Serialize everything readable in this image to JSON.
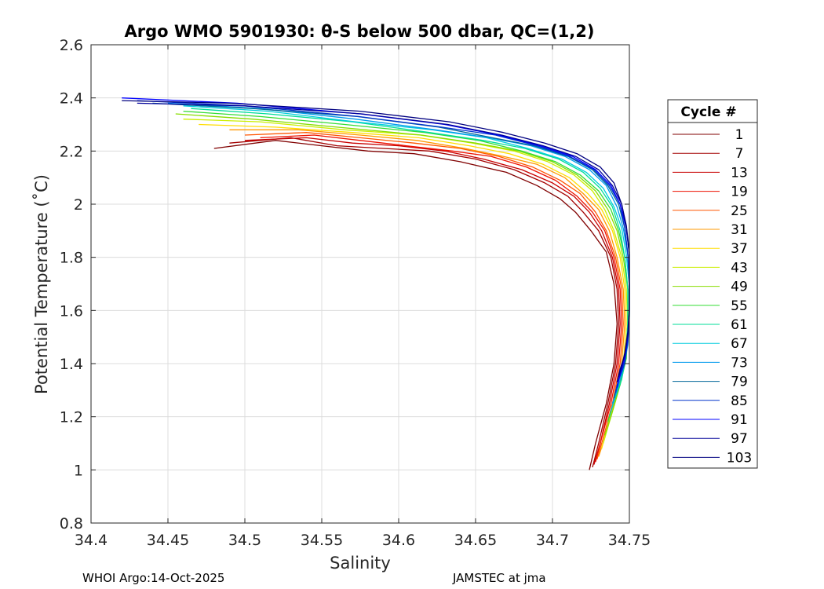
{
  "chart_data": {
    "type": "line",
    "title": "Argo WMO 5901930: θ-S below 500 dbar,  QC=(1,2)",
    "xlabel": "Salinity",
    "ylabel": "Potential Temperature (˚C)",
    "xlim": [
      34.4,
      34.75
    ],
    "ylim": [
      0.8,
      2.6
    ],
    "xticks": [
      34.4,
      34.45,
      34.5,
      34.55,
      34.6,
      34.65,
      34.7,
      34.75
    ],
    "yticks": [
      0.8,
      1,
      1.2,
      1.4,
      1.6,
      1.8,
      2,
      2.2,
      2.4,
      2.6
    ],
    "xtick_labels": [
      "34.4",
      "34.45",
      "34.5",
      "34.55",
      "34.6",
      "34.65",
      "34.7",
      "34.75"
    ],
    "ytick_labels": [
      "0.8",
      "1",
      "1.2",
      "1.4",
      "1.6",
      "1.8",
      "2",
      "2.2",
      "2.4",
      "2.6"
    ],
    "grid": true,
    "legend_title": "Cycle #",
    "legend_position": "right, outside plot",
    "series": [
      {
        "name": "1",
        "color": "#800000",
        "x": [
          34.48,
          34.52,
          34.55,
          34.58,
          34.61,
          34.64,
          34.67,
          34.69,
          34.705,
          34.715,
          34.725,
          34.735,
          34.74,
          34.742,
          34.74,
          34.735,
          34.728,
          34.724
        ],
        "y": [
          2.21,
          2.24,
          2.22,
          2.2,
          2.19,
          2.16,
          2.12,
          2.07,
          2.02,
          1.97,
          1.9,
          1.82,
          1.7,
          1.55,
          1.4,
          1.25,
          1.1,
          1.0
        ]
      },
      {
        "name": "7",
        "color": "#a30000",
        "x": [
          34.49,
          34.53,
          34.56,
          34.59,
          34.62,
          34.65,
          34.675,
          34.695,
          34.71,
          34.72,
          34.73,
          34.738,
          34.742,
          34.743,
          34.741,
          34.736,
          34.73,
          34.726
        ],
        "y": [
          2.23,
          2.25,
          2.22,
          2.21,
          2.2,
          2.17,
          2.13,
          2.08,
          2.03,
          1.97,
          1.9,
          1.8,
          1.68,
          1.55,
          1.4,
          1.25,
          1.1,
          1.01
        ]
      },
      {
        "name": "13",
        "color": "#c80000",
        "x": [
          34.5,
          34.54,
          34.57,
          34.6,
          34.63,
          34.655,
          34.68,
          34.7,
          34.714,
          34.724,
          34.732,
          34.739,
          34.743,
          34.744,
          34.742,
          34.737,
          34.731,
          34.727
        ],
        "y": [
          2.24,
          2.25,
          2.23,
          2.22,
          2.2,
          2.17,
          2.13,
          2.08,
          2.03,
          1.97,
          1.9,
          1.8,
          1.68,
          1.55,
          1.4,
          1.25,
          1.1,
          1.02
        ]
      },
      {
        "name": "19",
        "color": "#ee1100",
        "x": [
          34.51,
          34.545,
          34.575,
          34.605,
          34.635,
          34.66,
          34.683,
          34.702,
          34.716,
          34.726,
          34.734,
          34.74,
          34.744,
          34.745,
          34.743,
          34.738,
          34.732,
          34.728
        ],
        "y": [
          2.25,
          2.26,
          2.24,
          2.22,
          2.2,
          2.18,
          2.14,
          2.09,
          2.03,
          1.97,
          1.9,
          1.8,
          1.68,
          1.55,
          1.4,
          1.25,
          1.12,
          1.03
        ]
      },
      {
        "name": "25",
        "color": "#ff5500",
        "x": [
          34.5,
          34.54,
          34.575,
          34.61,
          34.64,
          34.665,
          34.687,
          34.705,
          34.718,
          34.728,
          34.735,
          34.741,
          34.745,
          34.746,
          34.744,
          34.739,
          34.733,
          34.729
        ],
        "y": [
          2.26,
          2.27,
          2.25,
          2.23,
          2.21,
          2.18,
          2.14,
          2.09,
          2.04,
          1.97,
          1.9,
          1.8,
          1.68,
          1.55,
          1.4,
          1.25,
          1.12,
          1.04
        ]
      },
      {
        "name": "31",
        "color": "#ff9900",
        "x": [
          34.49,
          34.535,
          34.575,
          34.612,
          34.643,
          34.668,
          34.69,
          34.708,
          34.72,
          34.73,
          34.737,
          34.742,
          34.746,
          34.747,
          34.745,
          34.74,
          34.734,
          34.73
        ],
        "y": [
          2.28,
          2.28,
          2.26,
          2.24,
          2.21,
          2.18,
          2.15,
          2.1,
          2.04,
          1.98,
          1.9,
          1.8,
          1.68,
          1.55,
          1.4,
          1.25,
          1.12,
          1.05
        ]
      },
      {
        "name": "37",
        "color": "#ffdd00",
        "x": [
          34.47,
          34.52,
          34.57,
          34.613,
          34.646,
          34.672,
          34.694,
          34.711,
          34.723,
          34.732,
          34.739,
          34.744,
          34.747,
          34.748,
          34.746,
          34.741,
          34.735,
          34.732
        ],
        "y": [
          2.3,
          2.29,
          2.27,
          2.25,
          2.22,
          2.19,
          2.15,
          2.1,
          2.04,
          1.98,
          1.9,
          1.8,
          1.68,
          1.55,
          1.4,
          1.26,
          1.15,
          1.08
        ]
      },
      {
        "name": "43",
        "color": "#ccee00",
        "x": [
          34.46,
          34.51,
          34.565,
          34.614,
          34.648,
          34.675,
          34.697,
          34.714,
          34.726,
          34.734,
          34.74,
          34.745,
          34.748,
          34.749,
          34.747,
          34.742,
          34.737,
          34.733
        ],
        "y": [
          2.32,
          2.31,
          2.28,
          2.26,
          2.23,
          2.2,
          2.16,
          2.11,
          2.05,
          1.98,
          1.9,
          1.8,
          1.68,
          1.55,
          1.4,
          1.28,
          1.18,
          1.1
        ]
      },
      {
        "name": "49",
        "color": "#88dd00",
        "x": [
          34.455,
          34.505,
          34.56,
          34.615,
          34.65,
          34.678,
          34.7,
          34.716,
          34.728,
          34.736,
          34.742,
          34.746,
          34.749,
          34.749,
          34.747,
          34.743,
          34.738,
          34.734
        ],
        "y": [
          2.34,
          2.32,
          2.29,
          2.26,
          2.23,
          2.2,
          2.16,
          2.11,
          2.05,
          1.98,
          1.9,
          1.8,
          1.68,
          1.55,
          1.4,
          1.3,
          1.2,
          1.13
        ]
      },
      {
        "name": "55",
        "color": "#33dd33",
        "x": [
          34.46,
          34.51,
          34.565,
          34.617,
          34.652,
          34.68,
          34.702,
          34.718,
          34.73,
          34.738,
          34.743,
          34.747,
          34.749,
          34.749,
          34.748,
          34.744,
          34.739,
          34.736
        ],
        "y": [
          2.35,
          2.33,
          2.3,
          2.27,
          2.24,
          2.2,
          2.16,
          2.11,
          2.05,
          1.98,
          1.9,
          1.8,
          1.68,
          1.55,
          1.42,
          1.32,
          1.24,
          1.18
        ]
      },
      {
        "name": "61",
        "color": "#00dd99",
        "x": [
          34.465,
          34.515,
          34.57,
          34.62,
          34.655,
          34.682,
          34.704,
          34.72,
          34.731,
          34.739,
          34.744,
          34.747,
          34.749,
          34.749,
          34.748,
          34.745,
          34.74,
          34.737
        ],
        "y": [
          2.36,
          2.34,
          2.31,
          2.27,
          2.24,
          2.21,
          2.17,
          2.12,
          2.06,
          1.99,
          1.9,
          1.8,
          1.68,
          1.56,
          1.44,
          1.34,
          1.26,
          1.2
        ]
      },
      {
        "name": "67",
        "color": "#00ccdd",
        "x": [
          34.46,
          34.515,
          34.572,
          34.622,
          34.657,
          34.684,
          34.706,
          34.722,
          34.733,
          34.74,
          34.745,
          34.748,
          34.75,
          34.75,
          34.748,
          34.745,
          34.741,
          34.738
        ],
        "y": [
          2.37,
          2.35,
          2.31,
          2.28,
          2.25,
          2.21,
          2.17,
          2.12,
          2.06,
          1.99,
          1.91,
          1.81,
          1.69,
          1.57,
          1.46,
          1.36,
          1.28,
          1.22
        ]
      },
      {
        "name": "73",
        "color": "#0099ee",
        "x": [
          34.45,
          34.51,
          34.572,
          34.624,
          34.659,
          34.686,
          34.708,
          34.724,
          34.735,
          34.742,
          34.746,
          34.749,
          34.75,
          34.75,
          34.749,
          34.746,
          34.742,
          34.739
        ],
        "y": [
          2.38,
          2.36,
          2.32,
          2.28,
          2.25,
          2.22,
          2.18,
          2.13,
          2.07,
          1.99,
          1.91,
          1.81,
          1.69,
          1.58,
          1.47,
          1.38,
          1.3,
          1.25
        ]
      },
      {
        "name": "79",
        "color": "#006699",
        "x": [
          34.44,
          34.505,
          34.573,
          34.626,
          34.661,
          34.688,
          34.71,
          34.726,
          34.736,
          34.743,
          34.747,
          34.749,
          34.75,
          34.75,
          34.749,
          34.746,
          34.742,
          34.74
        ],
        "y": [
          2.38,
          2.36,
          2.33,
          2.29,
          2.25,
          2.22,
          2.18,
          2.13,
          2.07,
          2.0,
          1.91,
          1.81,
          1.7,
          1.58,
          1.48,
          1.39,
          1.32,
          1.27
        ]
      },
      {
        "name": "85",
        "color": "#0033cc",
        "x": [
          34.43,
          34.5,
          34.574,
          34.628,
          34.663,
          34.69,
          34.711,
          34.727,
          34.737,
          34.744,
          34.747,
          34.749,
          34.75,
          34.75,
          34.749,
          34.747,
          34.743,
          34.741
        ],
        "y": [
          2.39,
          2.37,
          2.33,
          2.29,
          2.26,
          2.22,
          2.18,
          2.13,
          2.07,
          2.0,
          1.91,
          1.81,
          1.7,
          1.59,
          1.49,
          1.4,
          1.34,
          1.29
        ]
      },
      {
        "name": "91",
        "color": "#0000ff",
        "x": [
          34.42,
          34.495,
          34.575,
          34.63,
          34.665,
          34.692,
          34.713,
          34.728,
          34.738,
          34.744,
          34.748,
          34.75,
          34.75,
          34.75,
          34.749,
          34.747,
          34.744,
          34.742
        ],
        "y": [
          2.4,
          2.38,
          2.34,
          2.3,
          2.26,
          2.22,
          2.18,
          2.13,
          2.07,
          2.0,
          1.91,
          1.81,
          1.7,
          1.6,
          1.5,
          1.42,
          1.36,
          1.31
        ]
      },
      {
        "name": "97",
        "color": "#000099",
        "x": [
          34.43,
          34.5,
          34.576,
          34.632,
          34.667,
          34.694,
          34.715,
          34.73,
          34.739,
          34.745,
          34.748,
          34.75,
          34.75,
          34.75,
          34.749,
          34.747,
          34.744,
          34.742
        ],
        "y": [
          2.38,
          2.37,
          2.34,
          2.3,
          2.26,
          2.22,
          2.18,
          2.13,
          2.07,
          2.0,
          1.91,
          1.81,
          1.7,
          1.6,
          1.51,
          1.43,
          1.38,
          1.33
        ]
      },
      {
        "name": "103",
        "color": "#000080",
        "x": [
          34.42,
          34.49,
          34.575,
          34.633,
          34.668,
          34.695,
          34.716,
          34.731,
          34.74,
          34.745,
          34.748,
          34.75,
          34.75,
          34.75,
          34.749,
          34.747,
          34.745,
          34.743
        ],
        "y": [
          2.39,
          2.38,
          2.35,
          2.31,
          2.27,
          2.23,
          2.19,
          2.14,
          2.08,
          2.0,
          1.92,
          1.82,
          1.71,
          1.61,
          1.52,
          1.44,
          1.39,
          1.35
        ]
      }
    ]
  },
  "footer": {
    "left": "WHOI Argo:14-Oct-2025",
    "right": "JAMSTEC at jma"
  }
}
